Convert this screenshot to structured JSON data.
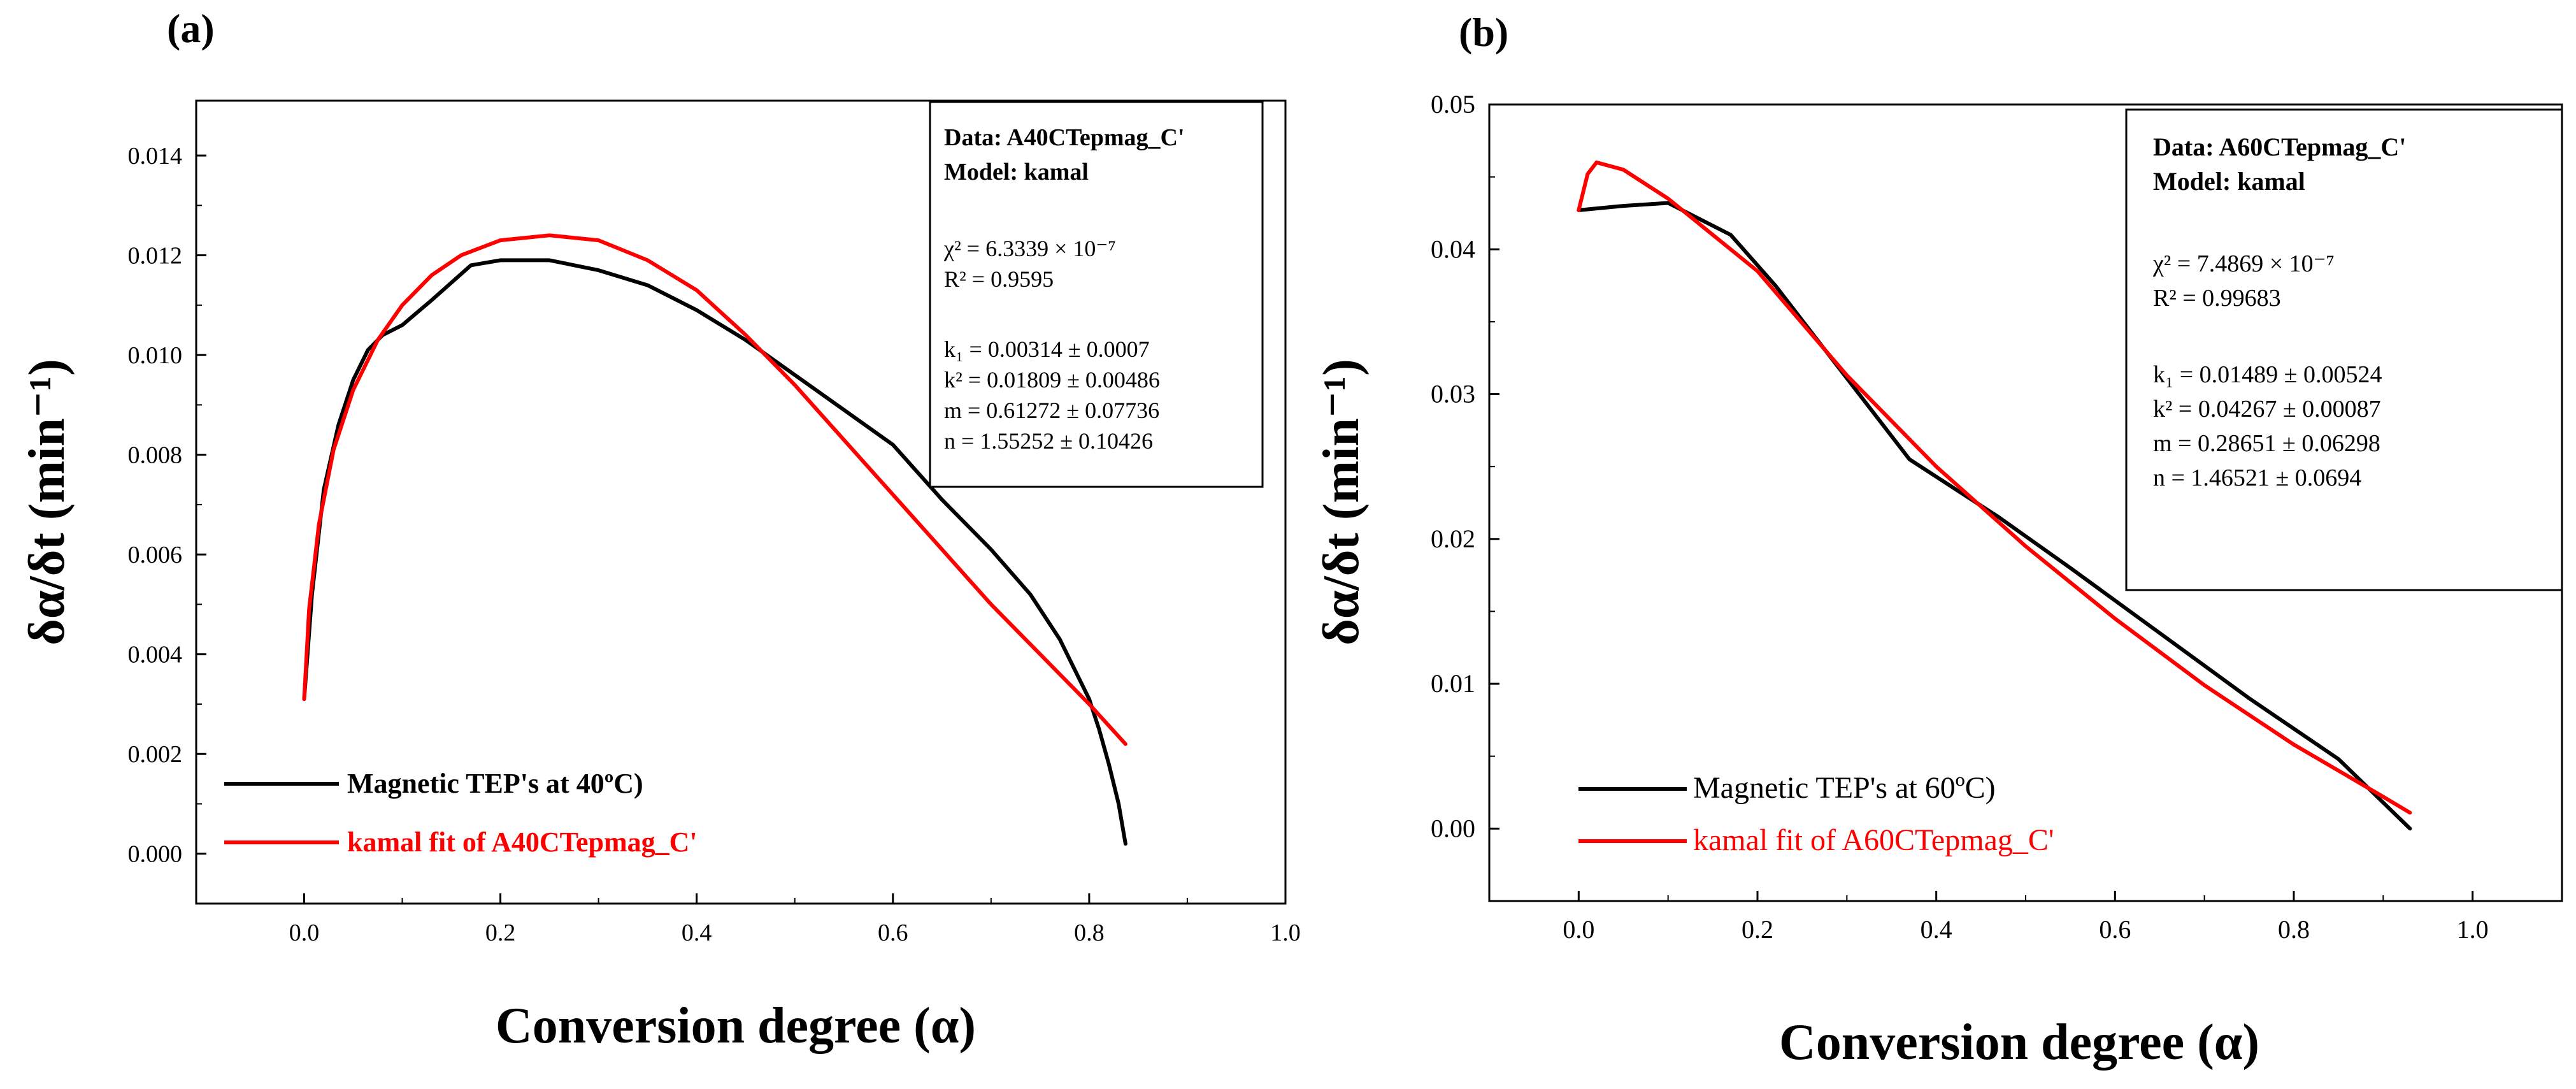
{
  "colors": {
    "data_line": "#000000",
    "fit_line": "#ff0000",
    "axis": "#000000",
    "background": "#ffffff"
  },
  "chart_data": [
    {
      "type": "line",
      "panel_label": "(a)",
      "xlabel": "Conversion degree (α)",
      "ylabel": "δα/δt (min⁻¹)",
      "xlim": [
        -0.11,
        1.0
      ],
      "ylim": [
        -0.001,
        0.0151
      ],
      "xticks": [
        0.0,
        0.2,
        0.4,
        0.6,
        0.8,
        1.0
      ],
      "xtick_labels": [
        "0.0",
        "0.2",
        "0.4",
        "0.6",
        "0.8",
        "1.0"
      ],
      "yticks": [
        0.0,
        0.002,
        0.004,
        0.006,
        0.008,
        0.01,
        0.012,
        0.014
      ],
      "ytick_labels": [
        "0.000",
        "0.002",
        "0.004",
        "0.006",
        "0.008",
        "0.010",
        "0.012",
        "0.014"
      ],
      "info_box": {
        "title_lines": [
          "Data: A40CTepmag_C'",
          "Model: kamal"
        ],
        "lines": [
          "χ² = 6.3339 × 10⁻⁷",
          "R² = 0.9595",
          "k₁ = 0.00314 ± 0.0007",
          "k² = 0.01809 ± 0.00486",
          "m = 0.61272 ± 0.07736",
          "n = 1.55252 ± 0.10426"
        ]
      },
      "legend": {
        "position": "bottom-left",
        "entries": [
          "Magnetic TEP's at 40ºC)",
          "kamal fit of A40CTepmag_C'"
        ]
      },
      "series": [
        {
          "name": "Magnetic TEP's at 40ºC)",
          "color": "#000000",
          "x": [
            0.0,
            0.008,
            0.02,
            0.035,
            0.05,
            0.065,
            0.08,
            0.1,
            0.13,
            0.17,
            0.2,
            0.25,
            0.3,
            0.35,
            0.4,
            0.45,
            0.5,
            0.55,
            0.6,
            0.65,
            0.7,
            0.74,
            0.77,
            0.8,
            0.81,
            0.82,
            0.83,
            0.837
          ],
          "y": [
            0.0031,
            0.0052,
            0.0073,
            0.0086,
            0.0095,
            0.0101,
            0.0104,
            0.0106,
            0.0111,
            0.0118,
            0.0119,
            0.0119,
            0.0117,
            0.0114,
            0.0109,
            0.0103,
            0.0096,
            0.0089,
            0.0082,
            0.0071,
            0.0061,
            0.0052,
            0.0043,
            0.0031,
            0.0025,
            0.0018,
            0.001,
            0.0002
          ]
        },
        {
          "name": "kamal fit of A40CTepmag_C'",
          "color": "#ff0000",
          "x": [
            0.0,
            0.005,
            0.015,
            0.03,
            0.05,
            0.075,
            0.1,
            0.13,
            0.16,
            0.2,
            0.25,
            0.3,
            0.35,
            0.4,
            0.45,
            0.5,
            0.55,
            0.6,
            0.65,
            0.7,
            0.75,
            0.8,
            0.837
          ],
          "y": [
            0.0031,
            0.0049,
            0.0066,
            0.0081,
            0.0093,
            0.0103,
            0.011,
            0.0116,
            0.012,
            0.0123,
            0.0124,
            0.0123,
            0.0119,
            0.0113,
            0.0104,
            0.0094,
            0.0083,
            0.0072,
            0.0061,
            0.005,
            0.004,
            0.003,
            0.0022
          ]
        }
      ]
    },
    {
      "type": "line",
      "panel_label": "(b)",
      "xlabel": "Conversion degree (α)",
      "ylabel": "δα/δt (min⁻¹)",
      "xlim": [
        -0.1,
        1.1
      ],
      "ylim": [
        -0.005,
        0.05
      ],
      "xticks": [
        0.0,
        0.2,
        0.4,
        0.6,
        0.8,
        1.0
      ],
      "xtick_labels": [
        "0.0",
        "0.2",
        "0.4",
        "0.6",
        "0.8",
        "1.0"
      ],
      "yticks": [
        0.0,
        0.01,
        0.02,
        0.03,
        0.04,
        0.05
      ],
      "ytick_labels": [
        "0.00",
        "0.01",
        "0.02",
        "0.03",
        "0.04",
        "0.05"
      ],
      "info_box": {
        "title_lines": [
          "Data: A60CTepmag_C'",
          "Model: kamal"
        ],
        "lines": [
          "χ² = 7.4869 × 10⁻⁷",
          "R² = 0.99683",
          "k₁ = 0.01489 ± 0.00524",
          "k² = 0.04267 ± 0.00087",
          "m = 0.28651 ± 0.06298",
          "n = 1.46521 ± 0.0694"
        ]
      },
      "legend": {
        "position": "bottom-left",
        "entries": [
          "Magnetic TEP's at 60ºC)",
          "kamal fit of A60CTepmag_C'"
        ]
      },
      "series": [
        {
          "name": "Magnetic TEP's at 60ºC)",
          "color": "#000000",
          "x": [
            0.0,
            0.05,
            0.1,
            0.17,
            0.22,
            0.27,
            0.32,
            0.37,
            0.42,
            0.47,
            0.55,
            0.65,
            0.75,
            0.85,
            0.93
          ],
          "y": [
            0.0427,
            0.043,
            0.0432,
            0.041,
            0.0375,
            0.0335,
            0.0295,
            0.0255,
            0.0235,
            0.0215,
            0.018,
            0.0135,
            0.009,
            0.0048,
            0.0
          ]
        },
        {
          "name": "kamal fit of A60CTepmag_C'",
          "color": "#ff0000",
          "x": [
            0.0,
            0.01,
            0.02,
            0.05,
            0.1,
            0.2,
            0.3,
            0.4,
            0.5,
            0.6,
            0.7,
            0.8,
            0.9,
            0.93
          ],
          "y": [
            0.0427,
            0.0452,
            0.046,
            0.0455,
            0.0435,
            0.0385,
            0.0313,
            0.025,
            0.0195,
            0.0145,
            0.0099,
            0.0058,
            0.0022,
            0.0011
          ]
        }
      ]
    }
  ]
}
